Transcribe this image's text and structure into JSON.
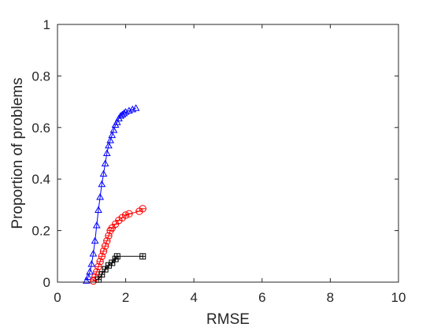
{
  "chart_data": {
    "type": "line",
    "title": "",
    "xlabel": "RMSE",
    "ylabel": "Proportion of problems",
    "xlim": [
      0,
      10
    ],
    "ylim": [
      0,
      1
    ],
    "xticks": [
      "0",
      "2",
      "4",
      "6",
      "8",
      "10"
    ],
    "yticks": [
      "0",
      "0.2",
      "0.4",
      "0.6",
      "0.8",
      "1"
    ],
    "grid": false,
    "legend": "none",
    "series": [
      {
        "color": "#0000ff",
        "marker": "triangle",
        "x": [
          0.85,
          0.9,
          0.95,
          1.0,
          1.05,
          1.1,
          1.15,
          1.2,
          1.25,
          1.3,
          1.35,
          1.4,
          1.45,
          1.5,
          1.55,
          1.6,
          1.65,
          1.7,
          1.75,
          1.8,
          1.85,
          1.9,
          1.95,
          2.0,
          2.1,
          2.2,
          2.3
        ],
        "y": [
          0.005,
          0.02,
          0.04,
          0.07,
          0.11,
          0.16,
          0.22,
          0.28,
          0.33,
          0.38,
          0.42,
          0.46,
          0.5,
          0.53,
          0.55,
          0.57,
          0.59,
          0.61,
          0.62,
          0.635,
          0.645,
          0.65,
          0.655,
          0.66,
          0.665,
          0.67,
          0.675
        ]
      },
      {
        "color": "#ff0000",
        "marker": "circle",
        "x": [
          1.05,
          1.1,
          1.15,
          1.2,
          1.25,
          1.3,
          1.35,
          1.4,
          1.45,
          1.5,
          1.55,
          1.6,
          1.7,
          1.8,
          1.9,
          2.0,
          2.1,
          2.4,
          2.5
        ],
        "y": [
          0.005,
          0.02,
          0.04,
          0.06,
          0.08,
          0.1,
          0.12,
          0.14,
          0.16,
          0.18,
          0.2,
          0.21,
          0.225,
          0.24,
          0.25,
          0.26,
          0.265,
          0.275,
          0.285
        ]
      },
      {
        "color": "#000000",
        "marker": "square",
        "x": [
          1.2,
          1.3,
          1.4,
          1.5,
          1.6,
          1.7,
          1.75,
          2.5
        ],
        "y": [
          0.01,
          0.03,
          0.05,
          0.065,
          0.075,
          0.09,
          0.1,
          0.1
        ]
      }
    ]
  }
}
